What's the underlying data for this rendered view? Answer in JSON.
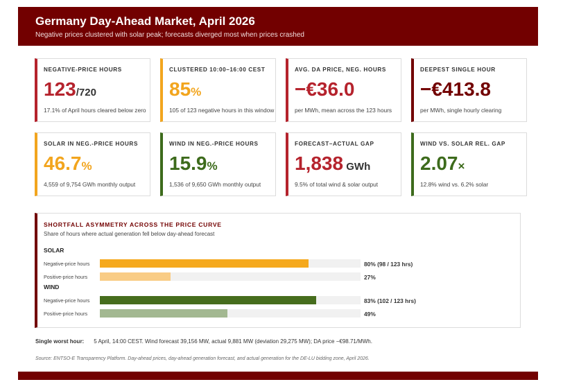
{
  "header": {
    "title": "Germany Day-Ahead Market, April 2026",
    "subtitle": "Negative prices clustered with solar peak; forecasts diverged most when prices crashed"
  },
  "colors": {
    "maroon": "#720000",
    "red": "#b5232d",
    "orange": "#f2a51e",
    "green": "#3d6b1c"
  },
  "kpis": [
    {
      "label": "NEGATIVE-PRICE HOURS",
      "value": "123",
      "suffix": "/720",
      "note": "17.1% of April hours cleared below zero",
      "color": "#b5232d"
    },
    {
      "label": "CLUSTERED 10:00–16:00 CEST",
      "value": "85",
      "suffix": "%",
      "note": "105 of 123 negative hours in this window",
      "color": "#f2a51e"
    },
    {
      "label": "AVG. DA PRICE, NEG. HOURS",
      "value": "−€36.0",
      "suffix": "",
      "note": "per MWh, mean across the 123 hours",
      "color": "#b5232d"
    },
    {
      "label": "DEEPEST SINGLE HOUR",
      "value": "−€413.8",
      "suffix": "",
      "note": "per MWh, single hourly clearing",
      "color": "#720000"
    },
    {
      "label": "SOLAR IN NEG.-PRICE HOURS",
      "value": "46.7",
      "suffix": "%",
      "note": "4,559 of 9,754 GWh monthly output",
      "color": "#f2a51e"
    },
    {
      "label": "WIND IN NEG.-PRICE HOURS",
      "value": "15.9",
      "suffix": "%",
      "note": "1,536 of 9,650 GWh monthly output",
      "color": "#3d6b1c"
    },
    {
      "label": "FORECAST–ACTUAL GAP",
      "value": "1,838",
      "suffix": " GWh",
      "note": "9.5% of total wind & solar output",
      "color": "#b5232d"
    },
    {
      "label": "WIND VS. SOLAR REL. GAP",
      "value": "2.07",
      "suffix": "×",
      "note": "12.8% wind vs. 6.2% solar",
      "color": "#3d6b1c"
    }
  ],
  "shortfall": {
    "title": "SHORTFALL ASYMMETRY ACROSS THE PRICE CURVE",
    "subtitle": "Share of hours where actual generation fell below day-ahead forecast",
    "groups": [
      {
        "name": "SOLAR",
        "rows": [
          {
            "label": "Negative-price hours",
            "value": 80,
            "text": "80% (98 / 123 hrs)",
            "color": "#f5a91d"
          },
          {
            "label": "Positive-price hours",
            "value": 27,
            "text": "27%",
            "color": "#f9cc85"
          }
        ]
      },
      {
        "name": "WIND",
        "rows": [
          {
            "label": "Negative-price hours",
            "value": 83,
            "text": "83% (102 / 123 hrs)",
            "color": "#466d1d"
          },
          {
            "label": "Positive-price hours",
            "value": 49,
            "text": "49%",
            "color": "#a3b891"
          }
        ]
      }
    ]
  },
  "worst_hour": {
    "label": "Single worst hour:",
    "text": "5 April, 14:00 CEST. Wind forecast 39,156 MW, actual 9,881 MW (deviation 29,275 MW); DA price −€98.71/MWh."
  },
  "source": "Source: ENTSO-E Transparency Platform. Day-ahead prices, day-ahead generation forecast, and actual generation for the DE-LU bidding zone, April 2026."
}
